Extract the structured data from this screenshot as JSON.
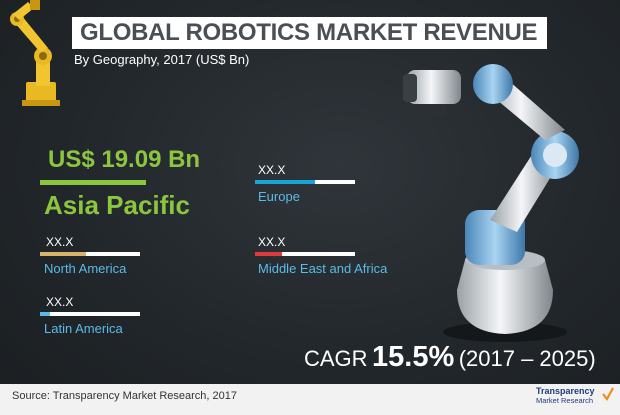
{
  "title": "GLOBAL ROBOTICS MARKET REVENUE",
  "subtitle": "By Geography, 2017 (US$ Bn)",
  "chart_data": {
    "type": "bar",
    "categories": [
      "Asia Pacific",
      "Europe",
      "North America",
      "Middle East and Africa",
      "Latin America"
    ],
    "value_labels": [
      "US$ 19.09 Bn",
      "XX.X",
      "XX.X",
      "XX.X",
      "XX.X"
    ],
    "bar_fill_fraction": [
      1.0,
      0.6,
      0.46,
      0.27,
      0.1
    ],
    "highlight": {
      "region": "Asia Pacific",
      "value": "US$ 19.09 Bn",
      "value_number": 19.09,
      "unit": "US$ Bn"
    }
  },
  "colors": {
    "asia_pacific": "#8cc63f",
    "europe": "#1aa3d9",
    "north_america": "#d9b36b",
    "middle_east_africa": "#e0393e",
    "latin_america": "#5bbbe6",
    "region_label": "#5bbbe6",
    "title_text": "#4a4f55"
  },
  "cagr": {
    "label": "CAGR",
    "value": "15.5%",
    "period": "(2017 – 2025)"
  },
  "footer": {
    "source": "Source: Transparency Market Research, 2017",
    "logo_line1": "Transparency",
    "logo_line2": "Market Research"
  },
  "icons": {
    "left_robot": "industrial-robot-arm-icon",
    "right_robot": "collaborative-robot-arm-icon",
    "logo_mark": "checkmark-logo-icon"
  }
}
